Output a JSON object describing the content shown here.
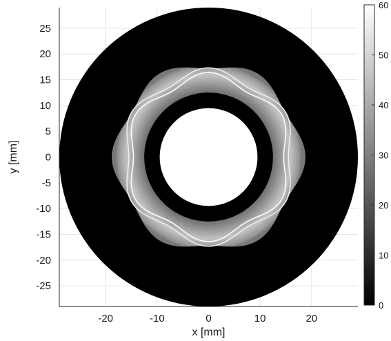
{
  "chart_data": {
    "type": "heatmap",
    "title": "",
    "xlabel": "x [mm]",
    "ylabel": "y [mm]",
    "xlim": [
      -29,
      29
    ],
    "ylim": [
      -29,
      29
    ],
    "x_ticks": [
      -20,
      -10,
      0,
      10,
      20
    ],
    "y_ticks": [
      25,
      20,
      15,
      10,
      5,
      0,
      -5,
      -10,
      -15,
      -20,
      -25
    ],
    "grid": true,
    "colormap": "gray",
    "colorbar": {
      "min": 0,
      "max": 60,
      "ticks": [
        60,
        50,
        40,
        30,
        20,
        10,
        0
      ]
    },
    "features": {
      "outer_disk_radius_mm": 29,
      "outer_disk_value": 0,
      "central_hole_radius_mm": 9.5,
      "dark_ring_outer_radius_mm": 12.5,
      "textured_band_outer_radius_mm": 18,
      "textured_band_value_range": [
        15,
        45
      ],
      "bright_contour_mean_radius_mm": 15.7,
      "bright_contour_lobes": 6,
      "bright_contour_value": 60
    }
  },
  "colors": {
    "background": "#000000",
    "band": "#8a8a8a",
    "contour": "#f2f2f2",
    "grid": "#e3e3e3"
  }
}
